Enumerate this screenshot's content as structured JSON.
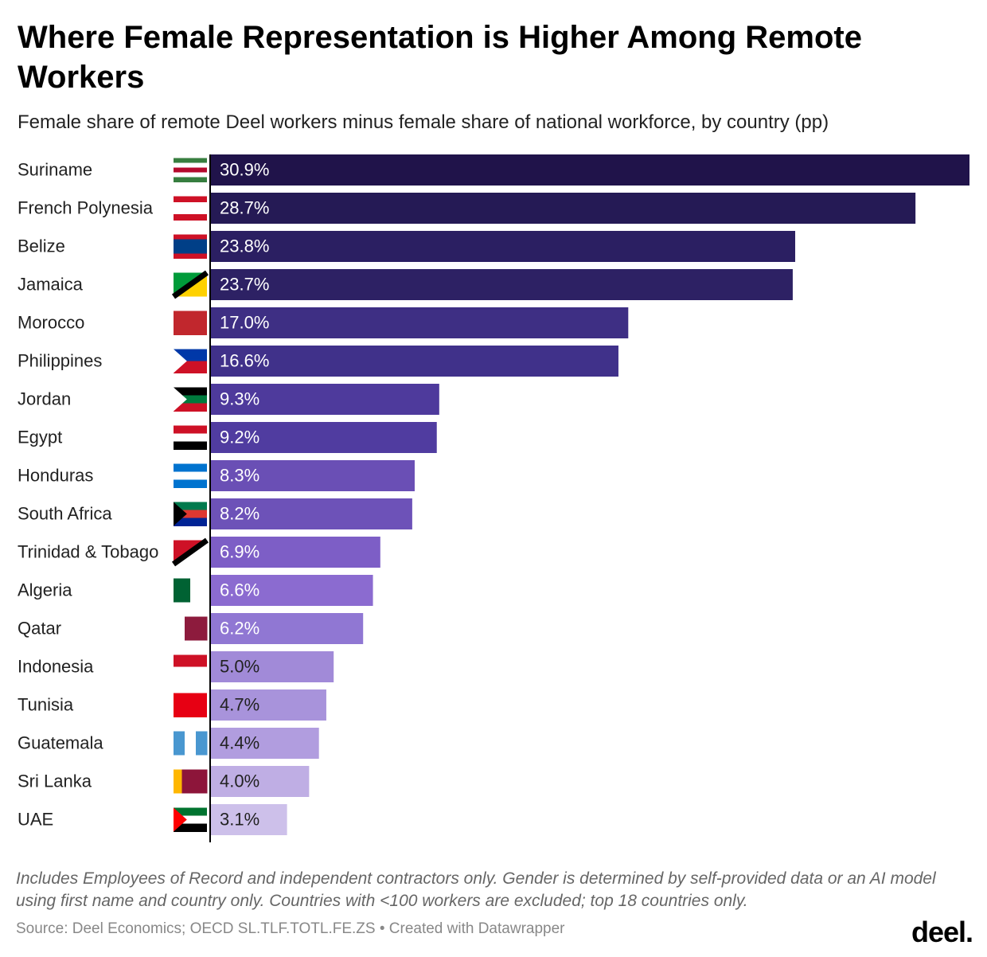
{
  "chart_data": {
    "type": "bar",
    "orientation": "horizontal",
    "title": "Where Female Representation is Higher Among Remote Workers",
    "subtitle": "Female share of remote Deel workers minus female share of national workforce, by country (pp)",
    "categories": [
      "Suriname",
      "French Polynesia",
      "Belize",
      "Jamaica",
      "Morocco",
      "Philippines",
      "Jordan",
      "Egypt",
      "Honduras",
      "South Africa",
      "Trinidad & Tobago",
      "Algeria",
      "Qatar",
      "Indonesia",
      "Tunisia",
      "Guatemala",
      "Sri Lanka",
      "UAE"
    ],
    "values": [
      30.9,
      28.7,
      23.8,
      23.7,
      17.0,
      16.6,
      9.3,
      9.2,
      8.3,
      8.2,
      6.9,
      6.6,
      6.2,
      5.0,
      4.7,
      4.4,
      4.0,
      3.1
    ],
    "value_labels": [
      "30.9%",
      "28.7%",
      "23.8%",
      "23.7%",
      "17.0%",
      "16.6%",
      "9.3%",
      "9.2%",
      "8.3%",
      "8.2%",
      "6.9%",
      "6.6%",
      "6.2%",
      "5.0%",
      "4.7%",
      "4.4%",
      "4.0%",
      "3.1%"
    ],
    "colors": [
      "#20134a",
      "#251a55",
      "#2b1f62",
      "#2d2164",
      "#3e2f84",
      "#40318a",
      "#4e3a9c",
      "#503ca0",
      "#6a4fb5",
      "#6d52b8",
      "#7d5ec6",
      "#8b6bd0",
      "#9077d3",
      "#a18ad8",
      "#a893db",
      "#b19ddf",
      "#bfaee4",
      "#cdc0ea"
    ],
    "notes": "Includes Employees of Record and independent contractors only. Gender is determined by self-provided data or an AI model using first name and country only. Countries with <100 workers are excluded; top 18 countries only.",
    "source": "Source: Deel Economics; OECD SL.TLF.TOTL.FE.ZS • Created with Datawrapper",
    "logo": "deel."
  }
}
